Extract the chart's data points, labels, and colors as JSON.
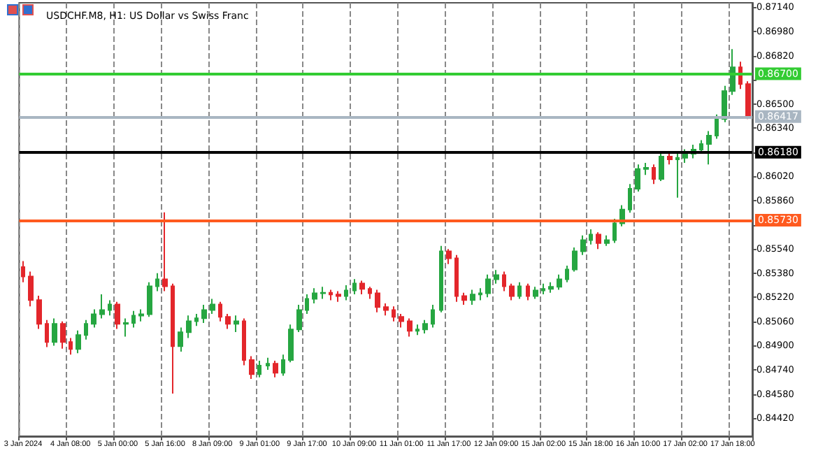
{
  "chart_data": {
    "type": "candlestick",
    "title": "USDCHF.M8, H1: US Dollar vs Swiss Franc",
    "categories": [
      "3 Jan 2024",
      null,
      null,
      null,
      null,
      null,
      "4 Jan 08:00",
      null,
      null,
      null,
      null,
      null,
      "5 Jan 00:00",
      null,
      null,
      null,
      null,
      null,
      "5 Jan 16:00",
      null,
      null,
      null,
      null,
      null,
      "8 Jan 09:00",
      null,
      null,
      null,
      null,
      null,
      "9 Jan 01:00",
      null,
      null,
      null,
      null,
      null,
      "9 Jan 17:00",
      null,
      null,
      null,
      null,
      null,
      "10 Jan 09:00",
      null,
      null,
      null,
      null,
      null,
      "11 Jan 01:00",
      null,
      null,
      null,
      null,
      null,
      "11 Jan 17:00",
      null,
      null,
      null,
      null,
      null,
      "12 Jan 09:00",
      null,
      null,
      null,
      null,
      null,
      "15 Jan 02:00",
      null,
      null,
      null,
      null,
      null,
      "15 Jan 18:00",
      null,
      null,
      null,
      null,
      null,
      "16 Jan 10:00",
      null,
      null,
      null,
      null,
      null,
      "17 Jan 02:00",
      null,
      null,
      null,
      null,
      null,
      "17 Jan 18:00",
      null,
      null
    ],
    "ohlc": [
      [
        0.8542,
        0.8546,
        0.8532,
        0.85358
      ],
      [
        0.85358,
        0.8539,
        0.8516,
        0.85201
      ],
      [
        0.85201,
        0.8523,
        0.8501,
        0.85044
      ],
      [
        0.85044,
        0.8507,
        0.8489,
        0.84924
      ],
      [
        0.84924,
        0.8508,
        0.849,
        0.85044
      ],
      [
        0.85044,
        0.8506,
        0.8488,
        0.84924
      ],
      [
        0.84924,
        0.8495,
        0.8484,
        0.84878
      ],
      [
        0.84878,
        0.85,
        0.8485,
        0.8497
      ],
      [
        0.8497,
        0.8507,
        0.8494,
        0.85044
      ],
      [
        0.85044,
        0.8514,
        0.8502,
        0.85108
      ],
      [
        0.85108,
        0.8524,
        0.8508,
        0.85136
      ],
      [
        0.85136,
        0.852,
        0.851,
        0.85173
      ],
      [
        0.85173,
        0.8519,
        0.8501,
        0.85044
      ],
      [
        0.85044,
        0.8508,
        0.8496,
        0.8505
      ],
      [
        0.8505,
        0.8513,
        0.8502,
        0.85099
      ],
      [
        0.85099,
        0.8514,
        0.8506,
        0.85108
      ],
      [
        0.85108,
        0.8532,
        0.8509,
        0.85293
      ],
      [
        0.85293,
        0.8538,
        0.8526,
        0.85339
      ],
      [
        0.85339,
        0.85783,
        0.8526,
        0.85293
      ],
      [
        0.85293,
        0.8531,
        0.84582,
        0.84896
      ],
      [
        0.84896,
        0.8502,
        0.8486,
        0.84988
      ],
      [
        0.84988,
        0.851,
        0.8495,
        0.85062
      ],
      [
        0.85062,
        0.8511,
        0.8503,
        0.85081
      ],
      [
        0.85081,
        0.8517,
        0.8505,
        0.85136
      ],
      [
        0.85136,
        0.8521,
        0.8511,
        0.85173
      ],
      [
        0.85173,
        0.8519,
        0.8506,
        0.8509
      ],
      [
        0.8509,
        0.8511,
        0.8501,
        0.85044
      ],
      [
        0.85044,
        0.851,
        0.8499,
        0.85062
      ],
      [
        0.85062,
        0.8508,
        0.8477,
        0.84804
      ],
      [
        0.84804,
        0.8483,
        0.8468,
        0.84711
      ],
      [
        0.84711,
        0.848,
        0.8469,
        0.84767
      ],
      [
        0.84767,
        0.8482,
        0.8474,
        0.8478
      ],
      [
        0.8478,
        0.848,
        0.8469,
        0.8472
      ],
      [
        0.8472,
        0.8484,
        0.847,
        0.84804
      ],
      [
        0.84804,
        0.8504,
        0.8479,
        0.85007
      ],
      [
        0.85007,
        0.8517,
        0.8499,
        0.85136
      ],
      [
        0.85136,
        0.8524,
        0.8511,
        0.8521
      ],
      [
        0.8521,
        0.8528,
        0.8518,
        0.85247
      ],
      [
        0.85247,
        0.8529,
        0.8521,
        0.8525
      ],
      [
        0.8525,
        0.8527,
        0.852,
        0.85238
      ],
      [
        0.85238,
        0.8526,
        0.8519,
        0.85228
      ],
      [
        0.85228,
        0.853,
        0.852,
        0.85265
      ],
      [
        0.85265,
        0.8534,
        0.8524,
        0.85311
      ],
      [
        0.85311,
        0.8533,
        0.8524,
        0.85275
      ],
      [
        0.85275,
        0.8529,
        0.8521,
        0.85247
      ],
      [
        0.85247,
        0.8527,
        0.8512,
        0.85155
      ],
      [
        0.85155,
        0.8518,
        0.851,
        0.85136
      ],
      [
        0.85136,
        0.8516,
        0.8506,
        0.8509
      ],
      [
        0.8509,
        0.8511,
        0.8502,
        0.85062
      ],
      [
        0.85062,
        0.8508,
        0.8496,
        0.84998
      ],
      [
        0.84998,
        0.8504,
        0.8497,
        0.85007
      ],
      [
        0.85007,
        0.8507,
        0.8498,
        0.85044
      ],
      [
        0.85044,
        0.8517,
        0.8502,
        0.85136
      ],
      [
        0.85136,
        0.8556,
        0.8512,
        0.85524
      ],
      [
        0.85524,
        0.8554,
        0.8544,
        0.85478
      ],
      [
        0.85478,
        0.855,
        0.8519,
        0.85228
      ],
      [
        0.85228,
        0.8525,
        0.8517,
        0.85201
      ],
      [
        0.85201,
        0.8527,
        0.8517,
        0.85238
      ],
      [
        0.85238,
        0.8528,
        0.852,
        0.85247
      ],
      [
        0.85247,
        0.8537,
        0.8522,
        0.85339
      ],
      [
        0.85339,
        0.854,
        0.8531,
        0.85367
      ],
      [
        0.85367,
        0.8539,
        0.8526,
        0.85293
      ],
      [
        0.85293,
        0.8531,
        0.852,
        0.85228
      ],
      [
        0.85228,
        0.8532,
        0.8521,
        0.85293
      ],
      [
        0.85293,
        0.8531,
        0.852,
        0.85228
      ],
      [
        0.85228,
        0.8529,
        0.8521,
        0.85265
      ],
      [
        0.85265,
        0.8531,
        0.8524,
        0.85275
      ],
      [
        0.85275,
        0.8532,
        0.8525,
        0.8529
      ],
      [
        0.8529,
        0.8537,
        0.8527,
        0.85339
      ],
      [
        0.85339,
        0.8543,
        0.8532,
        0.85404
      ],
      [
        0.85404,
        0.8555,
        0.8539,
        0.85524
      ],
      [
        0.85524,
        0.8563,
        0.855,
        0.85598
      ],
      [
        0.85598,
        0.8567,
        0.8557,
        0.85635
      ],
      [
        0.85635,
        0.8565,
        0.8554,
        0.85579
      ],
      [
        0.85579,
        0.8563,
        0.8556,
        0.85598
      ],
      [
        0.85598,
        0.8574,
        0.8558,
        0.85709
      ],
      [
        0.85709,
        0.8583,
        0.8569,
        0.85801
      ],
      [
        0.85801,
        0.8597,
        0.8578,
        0.85939
      ],
      [
        0.85939,
        0.861,
        0.8592,
        0.86069
      ],
      [
        0.86069,
        0.8611,
        0.8603,
        0.86078
      ],
      [
        0.86078,
        0.861,
        0.8597,
        0.86004
      ],
      [
        0.86004,
        0.8618,
        0.8599,
        0.86152
      ],
      [
        0.86152,
        0.8618,
        0.861,
        0.86133
      ],
      [
        0.86133,
        0.8617,
        0.8588,
        0.86143
      ],
      [
        0.86143,
        0.862,
        0.8611,
        0.8617
      ],
      [
        0.8617,
        0.8623,
        0.8614,
        0.86198
      ],
      [
        0.86198,
        0.8626,
        0.8617,
        0.86235
      ],
      [
        0.86235,
        0.8632,
        0.861,
        0.8629
      ],
      [
        0.8629,
        0.8643,
        0.8627,
        0.86401
      ],
      [
        0.86401,
        0.8662,
        0.8638,
        0.86586
      ],
      [
        0.86586,
        0.86863,
        0.8656,
        0.86743
      ],
      [
        0.86743,
        0.8678,
        0.866,
        0.86632
      ],
      [
        0.86632,
        0.8665,
        0.864,
        0.86417
      ]
    ],
    "colors": [
      "#e3262b",
      "#e3262b",
      "#e3262b",
      "#e3262b",
      "#26a641",
      "#e3262b",
      "#e3262b",
      "#26a641",
      "#26a641",
      "#26a641",
      "#26a641",
      "#26a641",
      "#e3262b",
      "#26a641",
      "#26a641",
      "#26a641",
      "#26a641",
      "#26a641",
      "#e3262b",
      "#e3262b",
      "#26a641",
      "#26a641",
      "#26a641",
      "#26a641",
      "#26a641",
      "#e3262b",
      "#e3262b",
      "#26a641",
      "#e3262b",
      "#e3262b",
      "#26a641",
      "#26a641",
      "#e3262b",
      "#26a641",
      "#26a641",
      "#26a641",
      "#26a641",
      "#26a641",
      "#26a641",
      "#e3262b",
      "#e3262b",
      "#26a641",
      "#26a641",
      "#e3262b",
      "#e3262b",
      "#e3262b",
      "#e3262b",
      "#e3262b",
      "#e3262b",
      "#e3262b",
      "#26a641",
      "#26a641",
      "#26a641",
      "#26a641",
      "#e3262b",
      "#e3262b",
      "#e3262b",
      "#26a641",
      "#26a641",
      "#26a641",
      "#26a641",
      "#e3262b",
      "#e3262b",
      "#26a641",
      "#e3262b",
      "#26a641",
      "#26a641",
      "#26a641",
      "#26a641",
      "#26a641",
      "#26a641",
      "#26a641",
      "#26a641",
      "#e3262b",
      "#26a641",
      "#26a641",
      "#26a641",
      "#26a641",
      "#26a641",
      "#26a641",
      "#e3262b",
      "#26a641",
      "#e3262b",
      "#26a641",
      "#26a641",
      "#26a641",
      "#26a641",
      "#26a641",
      "#26a641",
      "#26a641",
      "#26a641",
      "#e3262b",
      "#e3262b"
    ],
    "ylim": [
      0.843,
      0.8717
    ],
    "yticks": [
      {
        "value": 0.8442,
        "label": "0.84420"
      },
      {
        "value": 0.8458,
        "label": "0.84580"
      },
      {
        "value": 0.8474,
        "label": "0.84740"
      },
      {
        "value": 0.849,
        "label": "0.84900"
      },
      {
        "value": 0.8506,
        "label": "0.85060"
      },
      {
        "value": 0.8522,
        "label": "0.85220"
      },
      {
        "value": 0.8538,
        "label": "0.85380"
      },
      {
        "value": 0.8554,
        "label": "0.85540"
      },
      {
        "value": 0.857,
        "label": null
      },
      {
        "value": 0.8586,
        "label": "0.85860"
      },
      {
        "value": 0.8602,
        "label": "0.86020"
      },
      {
        "value": 0.8618,
        "label": null
      },
      {
        "value": 0.8634,
        "label": "0.86340"
      },
      {
        "value": 0.865,
        "label": "0.86500"
      },
      {
        "value": 0.8666,
        "label": null
      },
      {
        "value": 0.8682,
        "label": "0.86820"
      },
      {
        "value": 0.8698,
        "label": "0.86980"
      },
      {
        "value": 0.8714,
        "label": "0.87140"
      }
    ],
    "ref_lines": [
      {
        "axis": "y",
        "value": 0.867,
        "label": "0.86700",
        "color": "#33cc33"
      },
      {
        "axis": "y",
        "value": 0.86417,
        "label": "0.86417",
        "color": "#a9b6c2"
      },
      {
        "axis": "y",
        "value": 0.8618,
        "label": "0.86180",
        "color": "#000000"
      },
      {
        "axis": "y",
        "value": 0.8573,
        "label": "0.85730",
        "color": "#ff5a1f"
      }
    ],
    "grid": "x"
  }
}
